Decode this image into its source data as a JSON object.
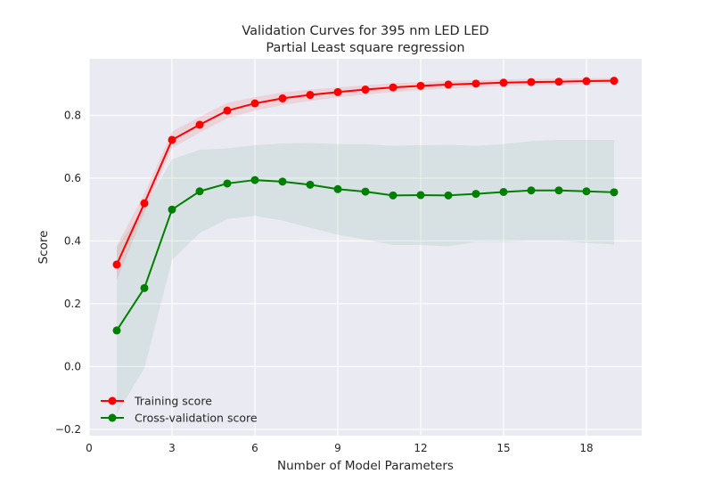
{
  "chart_data": {
    "type": "line",
    "title": "Validation Curves for 395 nm LED LED",
    "subtitle": "Partial Least square regression",
    "xlabel": "Number of Model Parameters",
    "ylabel": "Score",
    "xlim": [
      0,
      20
    ],
    "ylim": [
      -0.22,
      0.98
    ],
    "xticks": [
      0,
      3,
      6,
      9,
      12,
      15,
      18
    ],
    "yticks": [
      -0.2,
      0.0,
      0.2,
      0.4,
      0.6,
      0.8
    ],
    "xtick_labels": [
      "0",
      "3",
      "6",
      "9",
      "12",
      "15",
      "18"
    ],
    "ytick_labels": [
      "−0.2",
      "0.0",
      "0.2",
      "0.4",
      "0.6",
      "0.8"
    ],
    "grid": true,
    "legend_position": "lower-left",
    "x": [
      1,
      2,
      3,
      4,
      5,
      6,
      7,
      8,
      9,
      10,
      11,
      12,
      13,
      14,
      15,
      16,
      17,
      18,
      19
    ],
    "series": [
      {
        "name": "Training score",
        "color": "#ff0000",
        "band_color": "#ff0000",
        "values": [
          0.325,
          0.52,
          0.722,
          0.77,
          0.815,
          0.838,
          0.854,
          0.865,
          0.874,
          0.882,
          0.889,
          0.894,
          0.898,
          0.901,
          0.904,
          0.906,
          0.907,
          0.909,
          0.91
        ],
        "band_lower": [
          0.275,
          0.49,
          0.695,
          0.745,
          0.79,
          0.815,
          0.833,
          0.846,
          0.857,
          0.866,
          0.874,
          0.88,
          0.885,
          0.889,
          0.893,
          0.895,
          0.897,
          0.899,
          0.901
        ],
        "band_upper": [
          0.385,
          0.55,
          0.748,
          0.795,
          0.84,
          0.858,
          0.873,
          0.882,
          0.889,
          0.896,
          0.902,
          0.906,
          0.91,
          0.912,
          0.914,
          0.916,
          0.917,
          0.918,
          0.919
        ]
      },
      {
        "name": "Cross-validation score",
        "color": "#008000",
        "band_color": "#2e8b57",
        "values": [
          0.115,
          0.25,
          0.5,
          0.558,
          0.583,
          0.594,
          0.589,
          0.579,
          0.565,
          0.557,
          0.545,
          0.546,
          0.545,
          0.55,
          0.556,
          0.561,
          0.561,
          0.558,
          0.555
        ],
        "band_lower": [
          -0.15,
          -0.005,
          0.34,
          0.425,
          0.47,
          0.48,
          0.465,
          0.442,
          0.42,
          0.404,
          0.387,
          0.387,
          0.383,
          0.397,
          0.396,
          0.4,
          0.4,
          0.394,
          0.388
        ],
        "band_upper": [
          0.38,
          0.505,
          0.66,
          0.69,
          0.695,
          0.705,
          0.71,
          0.712,
          0.708,
          0.708,
          0.703,
          0.705,
          0.706,
          0.703,
          0.708,
          0.718,
          0.722,
          0.722,
          0.722
        ]
      }
    ]
  }
}
